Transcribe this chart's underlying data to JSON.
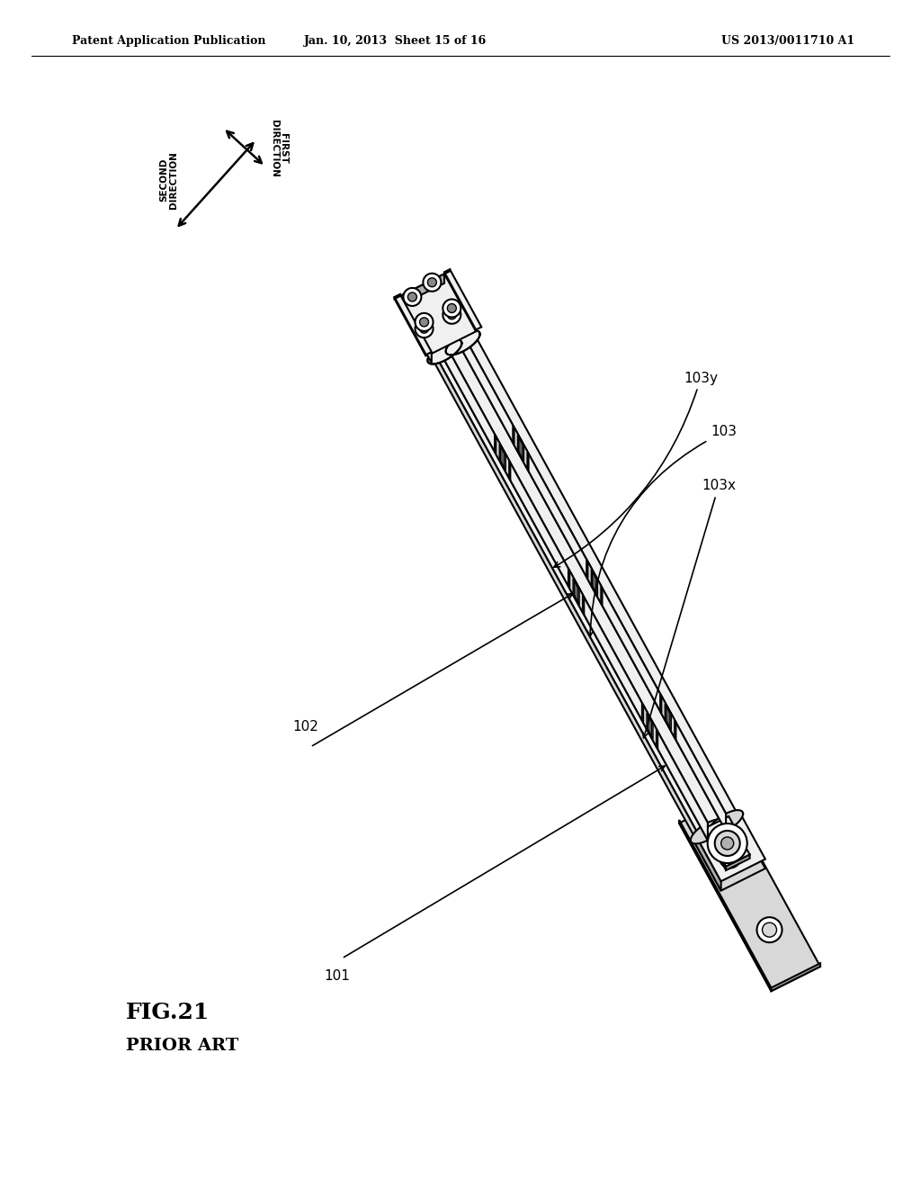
{
  "background_color": "#ffffff",
  "header_left": "Patent Application Publication",
  "header_center": "Jan. 10, 2013  Sheet 15 of 16",
  "header_right": "US 2013/0011710 A1",
  "figure_label": "FIG.21",
  "figure_sublabel": "PRIOR ART",
  "line_color": "#000000",
  "fill_white": "#ffffff",
  "fill_light": "#f0f0f0",
  "fill_mid": "#d8d8d8",
  "fill_dark": "#b0b0b0"
}
